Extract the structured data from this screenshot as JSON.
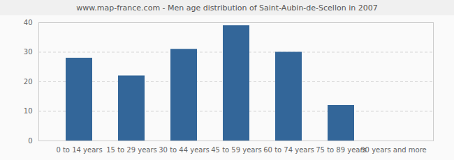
{
  "chart_data": {
    "type": "bar",
    "title": "www.map-france.com - Men age distribution of Saint-Aubin-de-Scellon in 2007",
    "categories": [
      "0 to 14 years",
      "15 to 29 years",
      "30 to 44 years",
      "45 to 59 years",
      "60 to 74 years",
      "75 to 89 years",
      "90 years and more"
    ],
    "values": [
      28,
      22,
      31,
      39,
      30,
      12,
      0
    ],
    "color": "#336699",
    "ylim": [
      0,
      40
    ],
    "yticks": [
      0,
      10,
      20,
      30,
      40
    ],
    "grid": true
  }
}
